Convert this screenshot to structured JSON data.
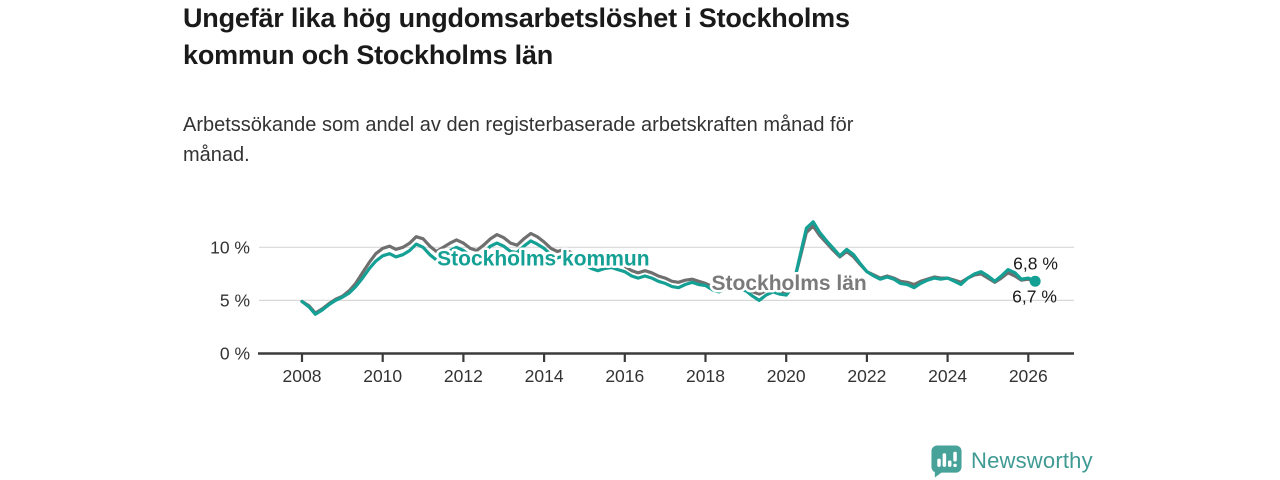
{
  "page": {
    "background": "#ffffff"
  },
  "header": {
    "title_line1": "Ungefär lika hög ungdomsarbetslöshet i Stockholms",
    "title_line2": "kommun och Stockholms län",
    "subtitle_line1": "Arbetssökande som andel av den registerbaserade arbetskraften månad för",
    "subtitle_line2": "månad."
  },
  "footer": {
    "brand": "Newsworthy",
    "brand_color": "#3f9a93",
    "logo_icon": "newsworthy-speech-bubble-bar-chart-icon",
    "logo_color": "#47a29a"
  },
  "chart_data": {
    "type": "line",
    "unit": "%",
    "grid": "horizontal",
    "xlim": [
      2006.95,
      2027.15
    ],
    "ylim": [
      0,
      14.5
    ],
    "x_tick_years": [
      2008,
      2010,
      2012,
      2014,
      2016,
      2018,
      2020,
      2022,
      2024,
      2026
    ],
    "y_ticks": [
      {
        "v": 0,
        "label": "0 %"
      },
      {
        "v": 5,
        "label": "5 %"
      },
      {
        "v": 10,
        "label": "10 %"
      }
    ],
    "colors": {
      "grid": "#d8d8d8",
      "axis": "#3b3b3b",
      "tick_text": "#333333",
      "end_label_text": "#1a1a1a"
    },
    "end_value_labels": [
      {
        "text": "6,8 %",
        "series": "Stockholms kommun"
      },
      {
        "text": "6,7 %",
        "series": "Stockholms län"
      }
    ],
    "series": [
      {
        "name": "Stockholms län",
        "color": "#6f6f6f",
        "label_color": "#7a7a7a",
        "label_anchor": {
          "x": 2018.15,
          "y": 6.0
        },
        "end_dot": false,
        "points": [
          [
            2008.0,
            4.9
          ],
          [
            2008.17,
            4.5
          ],
          [
            2008.33,
            3.8
          ],
          [
            2008.5,
            4.2
          ],
          [
            2008.67,
            4.7
          ],
          [
            2008.83,
            5.1
          ],
          [
            2009.0,
            5.4
          ],
          [
            2009.17,
            5.9
          ],
          [
            2009.33,
            6.6
          ],
          [
            2009.5,
            7.6
          ],
          [
            2009.67,
            8.6
          ],
          [
            2009.83,
            9.4
          ],
          [
            2010.0,
            9.9
          ],
          [
            2010.17,
            10.1
          ],
          [
            2010.33,
            9.8
          ],
          [
            2010.5,
            10.0
          ],
          [
            2010.67,
            10.4
          ],
          [
            2010.83,
            11.0
          ],
          [
            2011.0,
            10.8
          ],
          [
            2011.17,
            10.1
          ],
          [
            2011.33,
            9.6
          ],
          [
            2011.5,
            10.0
          ],
          [
            2011.67,
            10.4
          ],
          [
            2011.83,
            10.7
          ],
          [
            2012.0,
            10.4
          ],
          [
            2012.17,
            9.9
          ],
          [
            2012.33,
            9.7
          ],
          [
            2012.5,
            10.2
          ],
          [
            2012.67,
            10.8
          ],
          [
            2012.83,
            11.2
          ],
          [
            2013.0,
            10.9
          ],
          [
            2013.17,
            10.4
          ],
          [
            2013.33,
            10.2
          ],
          [
            2013.5,
            10.8
          ],
          [
            2013.67,
            11.3
          ],
          [
            2013.83,
            11.0
          ],
          [
            2014.0,
            10.5
          ],
          [
            2014.17,
            9.9
          ],
          [
            2014.33,
            9.6
          ],
          [
            2014.5,
            9.8
          ],
          [
            2014.67,
            9.5
          ],
          [
            2014.83,
            9.2
          ],
          [
            2015.0,
            9.0
          ],
          [
            2015.17,
            8.6
          ],
          [
            2015.33,
            8.4
          ],
          [
            2015.5,
            8.6
          ],
          [
            2015.67,
            8.7
          ],
          [
            2015.83,
            8.5
          ],
          [
            2016.0,
            8.2
          ],
          [
            2016.17,
            7.8
          ],
          [
            2016.33,
            7.6
          ],
          [
            2016.5,
            7.8
          ],
          [
            2016.67,
            7.6
          ],
          [
            2016.83,
            7.3
          ],
          [
            2017.0,
            7.1
          ],
          [
            2017.17,
            6.8
          ],
          [
            2017.33,
            6.7
          ],
          [
            2017.5,
            6.9
          ],
          [
            2017.67,
            7.0
          ],
          [
            2017.83,
            6.8
          ],
          [
            2018.0,
            6.6
          ],
          [
            2018.17,
            6.3
          ],
          [
            2018.33,
            6.1
          ],
          [
            2018.5,
            6.3
          ],
          [
            2018.67,
            6.5
          ],
          [
            2018.83,
            6.3
          ],
          [
            2019.0,
            6.1
          ],
          [
            2019.17,
            5.8
          ],
          [
            2019.33,
            5.6
          ],
          [
            2019.5,
            5.9
          ],
          [
            2019.67,
            6.1
          ],
          [
            2019.83,
            5.9
          ],
          [
            2020.0,
            5.8
          ],
          [
            2020.17,
            6.5
          ],
          [
            2020.33,
            8.8
          ],
          [
            2020.5,
            11.4
          ],
          [
            2020.67,
            12.0
          ],
          [
            2020.83,
            11.1
          ],
          [
            2021.0,
            10.4
          ],
          [
            2021.17,
            9.7
          ],
          [
            2021.33,
            9.1
          ],
          [
            2021.5,
            9.6
          ],
          [
            2021.67,
            9.1
          ],
          [
            2021.83,
            8.4
          ],
          [
            2022.0,
            7.7
          ],
          [
            2022.17,
            7.4
          ],
          [
            2022.33,
            7.1
          ],
          [
            2022.5,
            7.3
          ],
          [
            2022.67,
            7.1
          ],
          [
            2022.83,
            6.8
          ],
          [
            2023.0,
            6.7
          ],
          [
            2023.17,
            6.5
          ],
          [
            2023.33,
            6.8
          ],
          [
            2023.5,
            7.0
          ],
          [
            2023.67,
            7.2
          ],
          [
            2023.83,
            7.1
          ],
          [
            2024.0,
            7.1
          ],
          [
            2024.17,
            6.9
          ],
          [
            2024.33,
            6.7
          ],
          [
            2024.5,
            7.1
          ],
          [
            2024.67,
            7.4
          ],
          [
            2024.83,
            7.5
          ],
          [
            2025.0,
            7.1
          ],
          [
            2025.17,
            6.7
          ],
          [
            2025.33,
            7.1
          ],
          [
            2025.5,
            7.6
          ],
          [
            2025.67,
            7.3
          ],
          [
            2025.83,
            6.9
          ],
          [
            2026.0,
            7.0
          ],
          [
            2026.17,
            6.7
          ]
        ]
      },
      {
        "name": "Stockholms kommun",
        "color": "#14a094",
        "label_color": "#14a094",
        "label_anchor": {
          "x": 2011.35,
          "y": 8.3
        },
        "end_dot": true,
        "points": [
          [
            2008.0,
            4.9
          ],
          [
            2008.17,
            4.4
          ],
          [
            2008.33,
            3.7
          ],
          [
            2008.5,
            4.1
          ],
          [
            2008.67,
            4.6
          ],
          [
            2008.83,
            5.0
          ],
          [
            2009.0,
            5.3
          ],
          [
            2009.17,
            5.7
          ],
          [
            2009.33,
            6.3
          ],
          [
            2009.5,
            7.1
          ],
          [
            2009.67,
            8.0
          ],
          [
            2009.83,
            8.7
          ],
          [
            2010.0,
            9.2
          ],
          [
            2010.17,
            9.4
          ],
          [
            2010.33,
            9.1
          ],
          [
            2010.5,
            9.3
          ],
          [
            2010.67,
            9.7
          ],
          [
            2010.83,
            10.3
          ],
          [
            2011.0,
            10.0
          ],
          [
            2011.17,
            9.3
          ],
          [
            2011.33,
            8.8
          ],
          [
            2011.5,
            9.2
          ],
          [
            2011.67,
            9.7
          ],
          [
            2011.83,
            10.0
          ],
          [
            2012.0,
            9.7
          ],
          [
            2012.17,
            9.2
          ],
          [
            2012.33,
            9.0
          ],
          [
            2012.5,
            9.5
          ],
          [
            2012.67,
            10.1
          ],
          [
            2012.83,
            10.4
          ],
          [
            2013.0,
            10.1
          ],
          [
            2013.17,
            9.6
          ],
          [
            2013.33,
            9.5
          ],
          [
            2013.5,
            10.1
          ],
          [
            2013.67,
            10.6
          ],
          [
            2013.83,
            10.3
          ],
          [
            2014.0,
            9.9
          ],
          [
            2014.17,
            9.3
          ],
          [
            2014.33,
            9.0
          ],
          [
            2014.5,
            9.2
          ],
          [
            2014.67,
            8.9
          ],
          [
            2014.83,
            8.6
          ],
          [
            2015.0,
            8.4
          ],
          [
            2015.17,
            8.0
          ],
          [
            2015.33,
            7.8
          ],
          [
            2015.5,
            8.0
          ],
          [
            2015.67,
            8.1
          ],
          [
            2015.83,
            7.9
          ],
          [
            2016.0,
            7.7
          ],
          [
            2016.17,
            7.3
          ],
          [
            2016.33,
            7.1
          ],
          [
            2016.5,
            7.3
          ],
          [
            2016.67,
            7.1
          ],
          [
            2016.83,
            6.8
          ],
          [
            2017.0,
            6.6
          ],
          [
            2017.17,
            6.3
          ],
          [
            2017.33,
            6.2
          ],
          [
            2017.5,
            6.5
          ],
          [
            2017.67,
            6.7
          ],
          [
            2017.83,
            6.5
          ],
          [
            2018.0,
            6.4
          ],
          [
            2018.17,
            6.0
          ],
          [
            2018.33,
            5.8
          ],
          [
            2018.5,
            6.1
          ],
          [
            2018.67,
            6.3
          ],
          [
            2018.83,
            6.1
          ],
          [
            2019.0,
            5.9
          ],
          [
            2019.17,
            5.4
          ],
          [
            2019.33,
            5.0
          ],
          [
            2019.5,
            5.5
          ],
          [
            2019.67,
            5.8
          ],
          [
            2019.83,
            5.6
          ],
          [
            2020.0,
            5.5
          ],
          [
            2020.17,
            6.3
          ],
          [
            2020.33,
            9.0
          ],
          [
            2020.5,
            11.8
          ],
          [
            2020.67,
            12.4
          ],
          [
            2020.83,
            11.4
          ],
          [
            2021.0,
            10.6
          ],
          [
            2021.17,
            9.9
          ],
          [
            2021.33,
            9.2
          ],
          [
            2021.5,
            9.8
          ],
          [
            2021.67,
            9.3
          ],
          [
            2021.83,
            8.5
          ],
          [
            2022.0,
            7.7
          ],
          [
            2022.17,
            7.3
          ],
          [
            2022.33,
            7.0
          ],
          [
            2022.5,
            7.2
          ],
          [
            2022.67,
            7.0
          ],
          [
            2022.83,
            6.6
          ],
          [
            2023.0,
            6.5
          ],
          [
            2023.17,
            6.2
          ],
          [
            2023.33,
            6.6
          ],
          [
            2023.5,
            6.9
          ],
          [
            2023.67,
            7.1
          ],
          [
            2023.83,
            7.0
          ],
          [
            2024.0,
            7.1
          ],
          [
            2024.17,
            6.8
          ],
          [
            2024.33,
            6.5
          ],
          [
            2024.5,
            7.1
          ],
          [
            2024.67,
            7.5
          ],
          [
            2024.83,
            7.7
          ],
          [
            2025.0,
            7.3
          ],
          [
            2025.17,
            6.8
          ],
          [
            2025.33,
            7.3
          ],
          [
            2025.5,
            7.9
          ],
          [
            2025.67,
            7.6
          ],
          [
            2025.83,
            7.0
          ],
          [
            2026.0,
            7.1
          ],
          [
            2026.17,
            6.8
          ]
        ]
      }
    ]
  }
}
